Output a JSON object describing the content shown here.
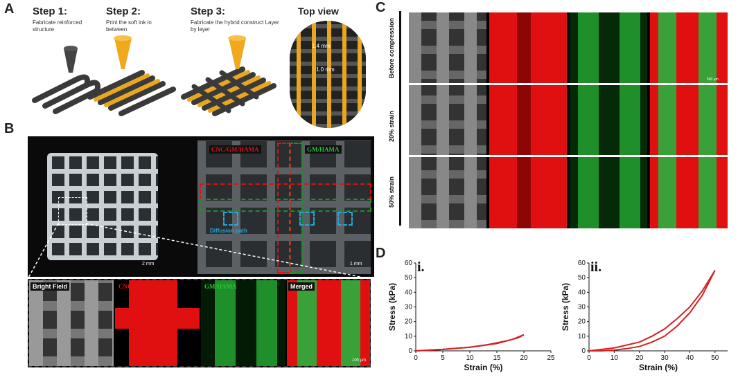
{
  "panels": {
    "a": "A",
    "b": "B",
    "c": "C",
    "d": "D"
  },
  "panel_a": {
    "step1_title": "Step 1:",
    "step1_desc": "Fabricate reinforced structure",
    "step2_title": "Step 2:",
    "step2_desc": "Print the soft ink in between",
    "step3_title": "Step 3:",
    "step3_desc": "Fabricate the hybrid construct Layer by layer",
    "top_view": "Top view",
    "dim1": "1.4 mm",
    "dim2": "1.0 mm"
  },
  "panel_b": {
    "scale1": "2 mm",
    "scale2": "1 mm",
    "scale3": "100 µm",
    "label_cnc": "CNC/GM/HAMA",
    "label_gm": "GM/HAMA",
    "label_diffusion": "Diffusion path",
    "bf": "Bright Field",
    "red": "CNC/GM/HAMA",
    "green": "GM/HAMA",
    "merged": "Merged"
  },
  "panel_c": {
    "rows": [
      "Before compression",
      "20% strain",
      "50% strain"
    ],
    "scale": "500 µm"
  },
  "colors": {
    "red": "#e01010",
    "green": "#1f8f2a",
    "curve": "#d42020",
    "cyan": "#27a6d8"
  },
  "chart_data": [
    {
      "type": "line",
      "panel": "i.",
      "xlabel": "Strain (%)",
      "ylabel": "Stress (kPa)",
      "xlim": [
        0,
        25
      ],
      "ylim": [
        0,
        60
      ],
      "xticks": [
        "0",
        "5",
        "10",
        "15",
        "20",
        "25"
      ],
      "yticks": [
        "0",
        "10",
        "20",
        "30",
        "40",
        "50",
        "60"
      ],
      "series": [
        {
          "x": [
            0,
            5,
            10,
            13,
            15,
            17,
            19,
            20
          ],
          "y": [
            0,
            1,
            2.5,
            4,
            5.5,
            7,
            9,
            11
          ]
        },
        {
          "x": [
            20,
            18,
            15,
            10,
            5,
            0
          ],
          "y": [
            11,
            8,
            5,
            2.5,
            1,
            0
          ]
        }
      ]
    },
    {
      "type": "line",
      "panel": "ii.",
      "xlabel": "Strain (%)",
      "ylabel": "Stress (kPa)",
      "xlim": [
        0,
        55
      ],
      "ylim": [
        0,
        60
      ],
      "xticks": [
        "0",
        "10",
        "20",
        "30",
        "40",
        "50"
      ],
      "yticks": [
        "0",
        "10",
        "20",
        "30",
        "40",
        "50",
        "60"
      ],
      "series": [
        {
          "x": [
            0,
            10,
            20,
            25,
            30,
            35,
            40,
            45,
            50
          ],
          "y": [
            0,
            2,
            6,
            10,
            15,
            22,
            30,
            41,
            55
          ]
        },
        {
          "x": [
            50,
            45,
            40,
            35,
            30,
            25,
            20,
            15,
            10,
            5,
            0
          ],
          "y": [
            55,
            38,
            26,
            17,
            10,
            6,
            3,
            1.5,
            0.5,
            0,
            0
          ]
        }
      ]
    }
  ]
}
